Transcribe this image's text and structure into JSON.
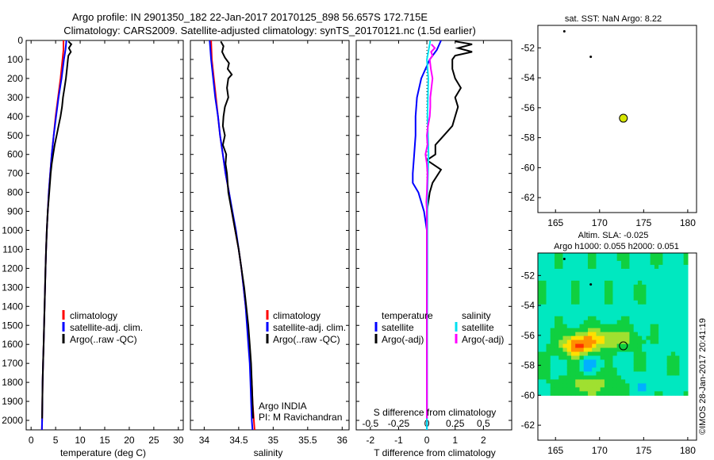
{
  "title": {
    "line1": "Argo profile: IN 2901350_182 22-Jan-2017 20170125_898 56.657S 172.715E",
    "line2": "Climatology: CARS2009. Satellite-adjusted climatology: synTS_20170121.nc (1.5d earlier)"
  },
  "colors": {
    "climatology": "#ff0000",
    "satellite": "#0000ff",
    "argo": "#000000",
    "satellite_s": "#00e0f0",
    "argo_s": "#ff00ff",
    "float_marker": "#d6e600"
  },
  "legend": {
    "climatology": "climatology",
    "satellite_adj": "satellite-adj. clim.",
    "argo_raw": "Argo(..raw -QC)",
    "temperature_head": "temperature",
    "salinity_head": "salinity",
    "satellite": "satellite",
    "argo_adj": "Argo(-adj)"
  },
  "float_info": {
    "program": "Argo INDIA",
    "pi": "PI: M Ravichandran"
  },
  "map_titles": {
    "sst": "sat. SST: NaN Argo: 8.22",
    "altim": "Altim. SLA: -0.025",
    "height": "Argo h1000: 0.055 h2000: 0.051"
  },
  "credit": "©IMOS 28-Jan-2017 20:41:19",
  "chart_data": [
    {
      "type": "line",
      "panel": "temperature",
      "xlabel": "temperature (deg C)",
      "ylabel": "",
      "xlim": [
        -1,
        31
      ],
      "ylim": [
        2050,
        0
      ],
      "xticks": [
        0,
        5,
        10,
        15,
        20,
        25,
        30
      ],
      "yticks": [
        0,
        100,
        200,
        300,
        400,
        500,
        600,
        700,
        800,
        900,
        1000,
        1100,
        1200,
        1300,
        1400,
        1500,
        1600,
        1700,
        1800,
        1900,
        2000
      ],
      "series": [
        {
          "name": "climatology",
          "color": "#ff0000",
          "points": [
            [
              6.6,
              0
            ],
            [
              6.6,
              50
            ],
            [
              6.4,
              100
            ],
            [
              6.0,
              200
            ],
            [
              5.5,
              300
            ],
            [
              5.0,
              400
            ],
            [
              4.6,
              500
            ],
            [
              4.2,
              600
            ],
            [
              3.9,
              700
            ],
            [
              3.6,
              800
            ],
            [
              3.4,
              900
            ],
            [
              3.2,
              1000
            ],
            [
              3.05,
              1100
            ],
            [
              2.95,
              1200
            ],
            [
              2.85,
              1300
            ],
            [
              2.75,
              1400
            ],
            [
              2.65,
              1500
            ],
            [
              2.55,
              1600
            ],
            [
              2.45,
              1700
            ],
            [
              2.35,
              1800
            ],
            [
              2.3,
              1900
            ],
            [
              2.25,
              2000
            ],
            [
              2.2,
              2050
            ]
          ]
        },
        {
          "name": "satellite-adj. clim.",
          "color": "#0000ff",
          "points": [
            [
              7.2,
              0
            ],
            [
              7.0,
              50
            ],
            [
              6.7,
              100
            ],
            [
              6.2,
              200
            ],
            [
              5.6,
              300
            ],
            [
              5.1,
              400
            ],
            [
              4.6,
              500
            ],
            [
              4.2,
              600
            ],
            [
              3.9,
              700
            ],
            [
              3.6,
              800
            ],
            [
              3.4,
              900
            ],
            [
              3.2,
              1000
            ],
            [
              3.05,
              1100
            ],
            [
              2.95,
              1200
            ],
            [
              2.85,
              1300
            ],
            [
              2.75,
              1400
            ],
            [
              2.65,
              1500
            ],
            [
              2.55,
              1600
            ],
            [
              2.45,
              1700
            ],
            [
              2.35,
              1800
            ],
            [
              2.3,
              1900
            ],
            [
              2.25,
              2000
            ],
            [
              2.2,
              2050
            ]
          ]
        },
        {
          "name": "Argo(..raw -QC)",
          "color": "#000000",
          "points": [
            [
              7.6,
              5
            ],
            [
              8.2,
              20
            ],
            [
              7.7,
              40
            ],
            [
              8.1,
              60
            ],
            [
              7.6,
              80
            ],
            [
              7.5,
              100
            ],
            [
              7.3,
              150
            ],
            [
              7.1,
              200
            ],
            [
              6.8,
              250
            ],
            [
              6.5,
              300
            ],
            [
              6.3,
              350
            ],
            [
              6.0,
              400
            ],
            [
              5.6,
              450
            ],
            [
              5.2,
              500
            ],
            [
              4.8,
              550
            ],
            [
              4.5,
              600
            ],
            [
              4.2,
              650
            ],
            [
              4.0,
              700
            ],
            [
              3.7,
              800
            ],
            [
              3.4,
              900
            ],
            [
              3.2,
              1000
            ],
            [
              3.05,
              1100
            ],
            [
              2.95,
              1200
            ],
            [
              2.85,
              1300
            ],
            [
              2.75,
              1400
            ],
            [
              2.65,
              1500
            ],
            [
              2.55,
              1600
            ],
            [
              2.45,
              1700
            ],
            [
              2.35,
              1800
            ],
            [
              2.3,
              1900
            ],
            [
              2.25,
              1990
            ]
          ]
        }
      ]
    },
    {
      "type": "line",
      "panel": "salinity",
      "xlabel": "salinity",
      "ylabel": "",
      "xlim": [
        33.8,
        36.1
      ],
      "ylim": [
        2050,
        0
      ],
      "xticks": [
        34,
        34.5,
        35,
        35.5,
        36
      ],
      "series": [
        {
          "name": "climatology",
          "color": "#ff0000",
          "points": [
            [
              34.1,
              0
            ],
            [
              34.11,
              100
            ],
            [
              34.14,
              200
            ],
            [
              34.17,
              300
            ],
            [
              34.2,
              400
            ],
            [
              34.23,
              500
            ],
            [
              34.27,
              600
            ],
            [
              34.31,
              700
            ],
            [
              34.36,
              800
            ],
            [
              34.4,
              900
            ],
            [
              34.45,
              1000
            ],
            [
              34.5,
              1100
            ],
            [
              34.54,
              1200
            ],
            [
              34.57,
              1300
            ],
            [
              34.6,
              1400
            ],
            [
              34.63,
              1500
            ],
            [
              34.65,
              1600
            ],
            [
              34.67,
              1700
            ],
            [
              34.69,
              1800
            ],
            [
              34.7,
              1900
            ],
            [
              34.72,
              2000
            ],
            [
              34.73,
              2050
            ]
          ]
        },
        {
          "name": "satellite-adj. clim.",
          "color": "#0000ff",
          "points": [
            [
              34.08,
              0
            ],
            [
              34.1,
              100
            ],
            [
              34.13,
              200
            ],
            [
              34.16,
              300
            ],
            [
              34.2,
              400
            ],
            [
              34.23,
              500
            ],
            [
              34.27,
              600
            ],
            [
              34.31,
              700
            ],
            [
              34.36,
              800
            ],
            [
              34.41,
              900
            ],
            [
              34.46,
              1000
            ],
            [
              34.5,
              1100
            ],
            [
              34.54,
              1200
            ],
            [
              34.57,
              1300
            ],
            [
              34.6,
              1400
            ],
            [
              34.62,
              1500
            ],
            [
              34.64,
              1600
            ],
            [
              34.66,
              1700
            ],
            [
              34.67,
              1800
            ],
            [
              34.68,
              1900
            ],
            [
              34.69,
              2000
            ],
            [
              34.7,
              2050
            ]
          ]
        },
        {
          "name": "Argo(..raw -QC)",
          "color": "#000000",
          "points": [
            [
              34.24,
              5
            ],
            [
              34.28,
              30
            ],
            [
              34.26,
              60
            ],
            [
              34.3,
              90
            ],
            [
              34.36,
              120
            ],
            [
              34.34,
              150
            ],
            [
              34.4,
              180
            ],
            [
              34.35,
              200
            ],
            [
              34.33,
              250
            ],
            [
              34.35,
              300
            ],
            [
              34.3,
              350
            ],
            [
              34.28,
              400
            ],
            [
              34.27,
              450
            ],
            [
              34.3,
              500
            ],
            [
              34.27,
              550
            ],
            [
              34.32,
              600
            ],
            [
              34.31,
              650
            ],
            [
              34.33,
              700
            ],
            [
              34.35,
              800
            ],
            [
              34.4,
              900
            ],
            [
              34.45,
              1000
            ],
            [
              34.5,
              1100
            ],
            [
              34.54,
              1200
            ],
            [
              34.58,
              1300
            ],
            [
              34.61,
              1400
            ],
            [
              34.64,
              1500
            ],
            [
              34.66,
              1600
            ],
            [
              34.68,
              1700
            ],
            [
              34.69,
              1800
            ],
            [
              34.7,
              1900
            ],
            [
              34.71,
              1990
            ]
          ]
        }
      ]
    },
    {
      "type": "line",
      "panel": "difference",
      "xlabel": "T difference from climatology",
      "xlabel_top": "S difference from climatology",
      "xlim": [
        -2.5,
        3
      ],
      "ylim": [
        2050,
        0
      ],
      "xticks": [
        -2,
        -1,
        0,
        1,
        2
      ],
      "xtick_labels_top": [
        "-0.5",
        "-0.25",
        "0",
        "0.25",
        "0.5"
      ],
      "series": [
        {
          "name": "temperature satellite",
          "color": "#0000ff",
          "points": [
            [
              0.5,
              0
            ],
            [
              0.35,
              50
            ],
            [
              0.1,
              100
            ],
            [
              -0.2,
              200
            ],
            [
              -0.35,
              300
            ],
            [
              -0.4,
              400
            ],
            [
              -0.4,
              500
            ],
            [
              -0.45,
              600
            ],
            [
              -0.5,
              700
            ],
            [
              -0.5,
              750
            ],
            [
              -0.3,
              800
            ],
            [
              -0.1,
              900
            ],
            [
              0,
              1000
            ],
            [
              0,
              2050
            ]
          ]
        },
        {
          "name": "temperature Argo(-adj)",
          "color": "#000000",
          "points": [
            [
              1.0,
              5
            ],
            [
              1.6,
              20
            ],
            [
              1.1,
              40
            ],
            [
              1.6,
              60
            ],
            [
              1.0,
              80
            ],
            [
              0.9,
              100
            ],
            [
              0.9,
              150
            ],
            [
              1.0,
              200
            ],
            [
              1.2,
              250
            ],
            [
              1.0,
              300
            ],
            [
              1.1,
              350
            ],
            [
              1.0,
              400
            ],
            [
              0.9,
              450
            ],
            [
              0.6,
              500
            ],
            [
              0.3,
              550
            ],
            [
              0.3,
              600
            ],
            [
              0.0,
              630
            ],
            [
              0.5,
              680
            ],
            [
              0.2,
              750
            ],
            [
              0.1,
              800
            ],
            [
              0.0,
              900
            ],
            [
              0.0,
              1000
            ],
            [
              0.0,
              1990
            ]
          ]
        },
        {
          "name": "salinity satellite",
          "color": "#00e0f0",
          "points": [
            [
              0.12,
              0
            ],
            [
              0.05,
              60
            ],
            [
              0.0,
              100
            ],
            [
              0.05,
              200
            ],
            [
              0.02,
              400
            ],
            [
              0.06,
              600
            ],
            [
              0.02,
              800
            ],
            [
              0.02,
              1200
            ],
            [
              0.01,
              1600
            ],
            [
              0.0,
              2000
            ],
            [
              0.0,
              2050
            ]
          ]
        },
        {
          "name": "salinity Argo(-adj)",
          "color": "#ff00ff",
          "points": [
            [
              0.16,
              20
            ],
            [
              0.28,
              40
            ],
            [
              0.15,
              60
            ],
            [
              0.2,
              80
            ],
            [
              0.1,
              100
            ],
            [
              0.14,
              150
            ],
            [
              0.2,
              200
            ],
            [
              0.16,
              250
            ],
            [
              0.12,
              300
            ],
            [
              0.12,
              350
            ],
            [
              0.1,
              400
            ],
            [
              0.04,
              450
            ],
            [
              0.0,
              500
            ],
            [
              0.02,
              550
            ],
            [
              -0.05,
              600
            ],
            [
              0.0,
              650
            ],
            [
              0.02,
              700
            ],
            [
              0.0,
              800
            ],
            [
              -0.02,
              850
            ],
            [
              0.0,
              900
            ],
            [
              0.0,
              1000
            ],
            [
              0.0,
              1990
            ]
          ]
        }
      ]
    },
    {
      "type": "scatter",
      "panel": "sst_map",
      "title": "sat. SST: NaN Argo: 8.22",
      "xlim": [
        163,
        181
      ],
      "ylim": [
        -63,
        -50.5
      ],
      "xticks": [
        165,
        170,
        175,
        180
      ],
      "yticks": [
        -52,
        -54,
        -56,
        -58,
        -60,
        -62
      ],
      "points": [
        {
          "x": 166,
          "y": -50.9,
          "kind": "track"
        },
        {
          "x": 169,
          "y": -52.6,
          "kind": "track"
        },
        {
          "x": 172.7,
          "y": -56.7,
          "kind": "float"
        }
      ]
    },
    {
      "type": "heatmap",
      "panel": "sla_map",
      "title": "Altim. SLA: -0.025",
      "subtitle": "Argo h1000: 0.055 h2000: 0.051",
      "xlim": [
        163,
        181
      ],
      "ylim": [
        -63,
        -50.5
      ],
      "xticks": [
        165,
        170,
        175,
        180
      ],
      "yticks": [
        -52,
        -54,
        -56,
        -58,
        -60,
        -62
      ],
      "points": [
        {
          "x": 166,
          "y": -50.9,
          "kind": "track"
        },
        {
          "x": 169,
          "y": -52.6,
          "kind": "track"
        },
        {
          "x": 172.7,
          "y": -56.7,
          "kind": "float"
        }
      ]
    }
  ]
}
